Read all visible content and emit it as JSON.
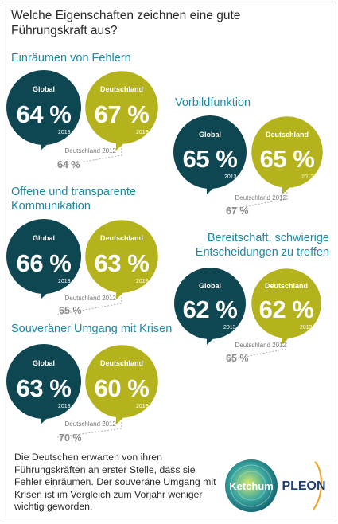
{
  "title": "Welche Eigenschaften zeichnen eine gute Führungskraft aus?",
  "colors": {
    "global": "#0e4751",
    "deutschland": "#b5b31d",
    "heading": "#1b8aa3",
    "previous": "#8a8a8a"
  },
  "chart_data": {
    "type": "bubble-comparison",
    "series_names": [
      "Global",
      "Deutschland"
    ],
    "year_current": "2013",
    "year_previous_label": "Deutschland 2012",
    "items": [
      {
        "label": "Einräumen von Fehlern",
        "global": 64,
        "deutschland": 67,
        "deutschland_2012": 64
      },
      {
        "label": "Vorbildfunktion",
        "global": 65,
        "deutschland": 65,
        "deutschland_2012": 67
      },
      {
        "label": "Offene und transparente Kommunikation",
        "global": 66,
        "deutschland": 63,
        "deutschland_2012": 65
      },
      {
        "label": "Bereitschaft, schwierige Entscheidungen zu treffen",
        "global": 62,
        "deutschland": 62,
        "deutschland_2012": 65
      },
      {
        "label": "Souveräner Umgang mit Krisen",
        "global": 63,
        "deutschland": 60,
        "deutschland_2012": 70
      }
    ]
  },
  "texts": {
    "global": "Global",
    "deutschland": "Deutschland",
    "year": "2013",
    "prev_label": "Deutschland 2012",
    "s1_title": "Einräumen von Fehlern",
    "s1_global": "64 %",
    "s1_de": "67 %",
    "s1_prev": "64 %",
    "s2_title": "Vorbildfunktion",
    "s2_global": "65 %",
    "s2_de": "65 %",
    "s2_prev": "67 %",
    "s3_title_1": "Offene und transparente",
    "s3_title_2": "Kommunikation",
    "s3_global": "66 %",
    "s3_de": "63 %",
    "s3_prev": "65 %",
    "s4_title_1": "Bereitschaft, schwierige",
    "s4_title_2": "Entscheidungen zu treffen",
    "s4_global": "62 %",
    "s4_de": "62 %",
    "s4_prev": "65 %",
    "s5_title": "Souveräner Umgang mit Krisen",
    "s5_global": "63 %",
    "s5_de": "60 %",
    "s5_prev": "70 %"
  },
  "footer": {
    "text": "Die Deutschen erwarten von ihren Führungskräften an erster Stelle, dass sie Fehler einräumen. Der souveräne Umgang mit Krisen ist im Vergleich zum Vorjahr weniger wichtig geworden."
  },
  "logos": {
    "ketchum": "Ketchum",
    "pleon": "PLEON"
  }
}
